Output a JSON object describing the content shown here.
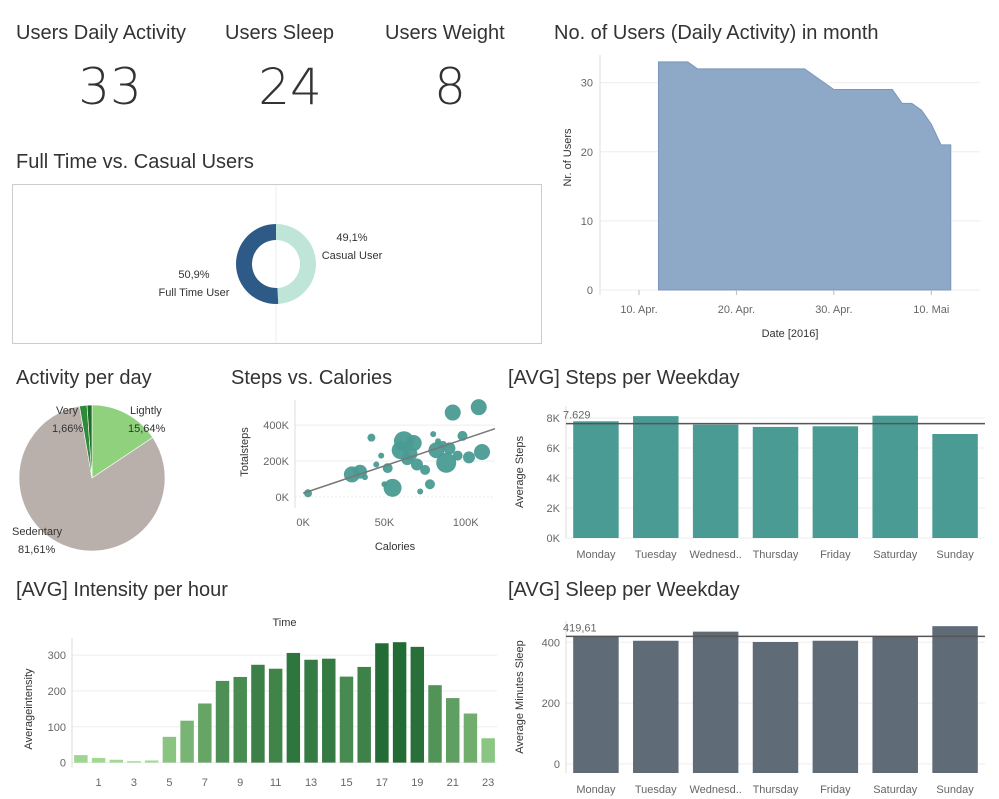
{
  "kpis": [
    {
      "title": "Users Daily Activity",
      "value": "33"
    },
    {
      "title": "Users Sleep",
      "value": "24"
    },
    {
      "title": "Users Weight",
      "value": "8"
    }
  ],
  "colors": {
    "area": "#8ea9c8",
    "full_time": "#2e5a87",
    "casual": "#bfe5d9",
    "sedentary": "#bab0ab",
    "lightly": "#8fd17c",
    "very": "#2e8b3a",
    "teal": "#4a9b94",
    "slate": "#5f6b77",
    "reference_line": "#555555"
  },
  "chart_data": [
    {
      "id": "users_month",
      "type": "area",
      "title": "No. of Users (Daily Activity) in month",
      "xlabel": "Date [2016]",
      "ylabel": "Nr. of Users",
      "x_ticks": [
        "10. Apr.",
        "20. Apr.",
        "30. Apr.",
        "10. Mai"
      ],
      "x": [
        "2016-04-12",
        "2016-04-13",
        "2016-04-14",
        "2016-04-15",
        "2016-04-16",
        "2016-04-17",
        "2016-04-18",
        "2016-04-19",
        "2016-04-20",
        "2016-04-21",
        "2016-04-22",
        "2016-04-23",
        "2016-04-24",
        "2016-04-25",
        "2016-04-26",
        "2016-04-27",
        "2016-04-28",
        "2016-04-29",
        "2016-04-30",
        "2016-05-01",
        "2016-05-02",
        "2016-05-03",
        "2016-05-04",
        "2016-05-05",
        "2016-05-06",
        "2016-05-07",
        "2016-05-08",
        "2016-05-09",
        "2016-05-10",
        "2016-05-11",
        "2016-05-12"
      ],
      "values": [
        33,
        33,
        33,
        33,
        32,
        32,
        32,
        32,
        32,
        32,
        32,
        32,
        32,
        32,
        32,
        32,
        31,
        30,
        29,
        29,
        29,
        29,
        29,
        29,
        29,
        27,
        27,
        26,
        24,
        21,
        21
      ],
      "y_ticks": [
        0,
        10,
        20,
        30
      ],
      "ylim": [
        0,
        34
      ]
    },
    {
      "id": "full_time_vs_casual",
      "type": "pie",
      "donut": true,
      "title": "Full Time vs. Casual Users",
      "slices": [
        {
          "name": "Casual User",
          "value": 49.1,
          "label": "49,1%"
        },
        {
          "name": "Full Time User",
          "value": 50.9,
          "label": "50,9%"
        }
      ]
    },
    {
      "id": "activity_per_day",
      "type": "pie",
      "title": "Activity per day",
      "slices": [
        {
          "name": "Lightly",
          "value": 15.64,
          "label": "15,64%"
        },
        {
          "name": "Sedentary",
          "value": 81.61,
          "label": "81,61%"
        },
        {
          "name": "Very",
          "value": 1.66,
          "label": "1,66%"
        },
        {
          "name": "",
          "value": 1.09,
          "label": ""
        }
      ]
    },
    {
      "id": "steps_vs_calories",
      "type": "scatter",
      "title": "Steps vs. Calories",
      "xlabel": "Calories",
      "ylabel": "Totalsteps",
      "x_ticks": [
        "0K",
        "50K",
        "100K"
      ],
      "x_tick_values": [
        0,
        50000,
        100000
      ],
      "y_ticks": [
        "0K",
        "200K",
        "400K"
      ],
      "y_tick_values": [
        0,
        200000,
        400000
      ],
      "xlim": [
        -5000,
        118000
      ],
      "ylim": [
        -40000,
        540000
      ],
      "points": [
        {
          "x": 3000,
          "y": 20000,
          "s": 4
        },
        {
          "x": 30000,
          "y": 125000,
          "s": 8
        },
        {
          "x": 35000,
          "y": 140000,
          "s": 7
        },
        {
          "x": 38000,
          "y": 110000,
          "s": 3
        },
        {
          "x": 42000,
          "y": 330000,
          "s": 4
        },
        {
          "x": 45000,
          "y": 180000,
          "s": 3
        },
        {
          "x": 48000,
          "y": 230000,
          "s": 3
        },
        {
          "x": 50000,
          "y": 70000,
          "s": 3
        },
        {
          "x": 52000,
          "y": 160000,
          "s": 5
        },
        {
          "x": 55000,
          "y": 50000,
          "s": 9
        },
        {
          "x": 60000,
          "y": 260000,
          "s": 9
        },
        {
          "x": 62000,
          "y": 310000,
          "s": 10
        },
        {
          "x": 64000,
          "y": 210000,
          "s": 6
        },
        {
          "x": 66000,
          "y": 240000,
          "s": 7
        },
        {
          "x": 68000,
          "y": 300000,
          "s": 8
        },
        {
          "x": 70000,
          "y": 180000,
          "s": 6
        },
        {
          "x": 72000,
          "y": 30000,
          "s": 3
        },
        {
          "x": 75000,
          "y": 150000,
          "s": 5
        },
        {
          "x": 78000,
          "y": 70000,
          "s": 5
        },
        {
          "x": 80000,
          "y": 350000,
          "s": 3
        },
        {
          "x": 82000,
          "y": 260000,
          "s": 8
        },
        {
          "x": 83000,
          "y": 310000,
          "s": 3
        },
        {
          "x": 86000,
          "y": 290000,
          "s": 4
        },
        {
          "x": 88000,
          "y": 190000,
          "s": 10
        },
        {
          "x": 90000,
          "y": 270000,
          "s": 6
        },
        {
          "x": 92000,
          "y": 470000,
          "s": 8
        },
        {
          "x": 95000,
          "y": 230000,
          "s": 5
        },
        {
          "x": 98000,
          "y": 340000,
          "s": 5
        },
        {
          "x": 102000,
          "y": 220000,
          "s": 6
        },
        {
          "x": 108000,
          "y": 500000,
          "s": 8
        },
        {
          "x": 110000,
          "y": 250000,
          "s": 8
        }
      ],
      "trend": [
        {
          "x": 0,
          "y": 20000
        },
        {
          "x": 118000,
          "y": 380000
        }
      ]
    },
    {
      "id": "steps_per_weekday",
      "type": "bar",
      "title": "[AVG] Steps per Weekday",
      "ylabel": "Average Steps",
      "categories": [
        "Monday",
        "Tuesday",
        "Wednesd..",
        "Thursday",
        "Friday",
        "Saturday",
        "Sunday"
      ],
      "values": [
        7781,
        8125,
        7559,
        7406,
        7448,
        8153,
        6933
      ],
      "y_ticks": [
        "0K",
        "2K",
        "4K",
        "6K",
        "8K"
      ],
      "y_tick_values": [
        0,
        2000,
        4000,
        6000,
        8000
      ],
      "ylim": [
        0,
        8800
      ],
      "reference_line": {
        "value": 7629,
        "label": "7.629"
      }
    },
    {
      "id": "intensity_per_hour",
      "type": "bar",
      "title": "[AVG] Intensity per hour",
      "xlabel": "Time",
      "ylabel": "Averageintensity",
      "categories": [
        "0",
        "1",
        "2",
        "3",
        "4",
        "5",
        "6",
        "7",
        "8",
        "9",
        "10",
        "11",
        "12",
        "13",
        "14",
        "15",
        "16",
        "17",
        "18",
        "19",
        "20",
        "21",
        "22",
        "23"
      ],
      "x_ticks": [
        "1",
        "3",
        "5",
        "7",
        "9",
        "11",
        "13",
        "15",
        "17",
        "19",
        "21",
        "23"
      ],
      "values": [
        21,
        13,
        8,
        4,
        6,
        72,
        117,
        165,
        228,
        239,
        273,
        262,
        306,
        287,
        290,
        240,
        267,
        333,
        336,
        323,
        216,
        180,
        137,
        68
      ],
      "y_ticks": [
        0,
        100,
        200,
        300
      ],
      "ylim": [
        -15,
        370
      ]
    },
    {
      "id": "sleep_per_weekday",
      "type": "bar",
      "title": "[AVG] Sleep per Weekday",
      "ylabel": "Average Minutes Sleep",
      "categories": [
        "Monday",
        "Tuesday",
        "Wednesd..",
        "Thursday",
        "Friday",
        "Saturday",
        "Sunday"
      ],
      "values": [
        420,
        405,
        435,
        401,
        405,
        420,
        453
      ],
      "y_ticks": [
        0,
        200,
        400
      ],
      "y_tick_values": [
        0,
        200,
        400
      ],
      "ylim": [
        -30,
        470
      ],
      "reference_line": {
        "value": 419.61,
        "label": "419,61"
      }
    }
  ]
}
